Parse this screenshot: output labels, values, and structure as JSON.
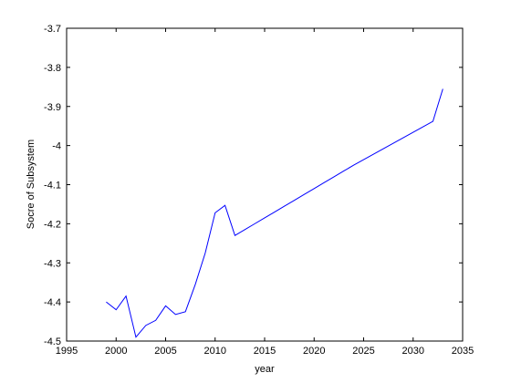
{
  "chart_data": {
    "type": "line",
    "title": "",
    "xlabel": "year",
    "ylabel": "Socre of Subsystem",
    "xlim": [
      1995,
      2035
    ],
    "ylim": [
      -4.5,
      -3.7
    ],
    "xticks": [
      1995,
      2000,
      2005,
      2010,
      2015,
      2020,
      2025,
      2030,
      2035
    ],
    "yticks": [
      -4.5,
      -4.4,
      -4.3,
      -4.2,
      -4.1,
      -4.0,
      -3.9,
      -3.8,
      -3.7
    ],
    "xtick_labels": [
      "1995",
      "2000",
      "2005",
      "2010",
      "2015",
      "2020",
      "2025",
      "2030",
      "2035"
    ],
    "ytick_labels": [
      "-4.5",
      "-4.4",
      "-4.3",
      "-4.2",
      "-4.1",
      "-4",
      "-3.9",
      "-3.8",
      "-3.7"
    ],
    "grid": false,
    "series": [
      {
        "color": "#0000ff",
        "x": [
          1999,
          2000,
          2001,
          2002,
          2003,
          2004,
          2005,
          2006,
          2007,
          2008,
          2009,
          2010,
          2011,
          2012,
          2013,
          2014,
          2015,
          2016,
          2017,
          2018,
          2019,
          2020,
          2021,
          2022,
          2023,
          2024,
          2025,
          2026,
          2027,
          2028,
          2029,
          2030,
          2031,
          2032,
          2033
        ],
        "y": [
          -4.4,
          -4.42,
          -4.385,
          -4.49,
          -4.46,
          -4.447,
          -4.41,
          -4.432,
          -4.425,
          -4.355,
          -4.275,
          -4.172,
          -4.153,
          -4.23,
          -4.215,
          -4.2,
          -4.185,
          -4.17,
          -4.155,
          -4.14,
          -4.125,
          -4.11,
          -4.095,
          -4.08,
          -4.065,
          -4.05,
          -4.036,
          -4.022,
          -4.008,
          -3.994,
          -3.98,
          -3.966,
          -3.952,
          -3.938,
          -3.855
        ]
      }
    ]
  }
}
